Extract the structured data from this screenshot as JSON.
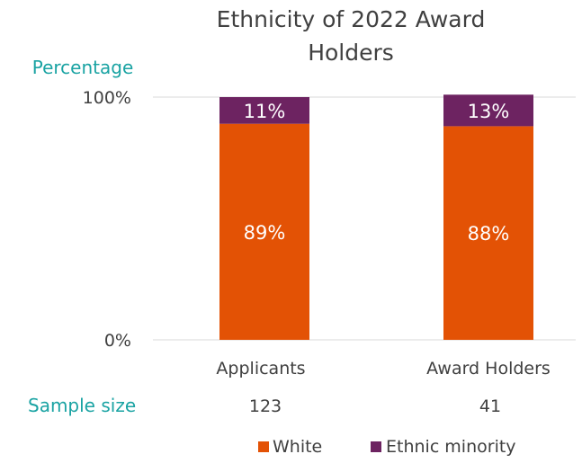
{
  "chart_data": {
    "type": "bar",
    "stacked": true,
    "title_line1": "Ethnicity of 2022 Award",
    "title_line2": "Holders",
    "ylabel": "Percentage",
    "ylim": [
      0,
      100
    ],
    "yticks": [
      "0%",
      "100%"
    ],
    "categories": [
      "Applicants",
      "Award Holders"
    ],
    "series": [
      {
        "name": "White",
        "color": "#e35205",
        "values": [
          89,
          88
        ],
        "labels": [
          "89%",
          "88%"
        ]
      },
      {
        "name": "Ethnic minority",
        "color": "#6d2361",
        "values": [
          11,
          13
        ],
        "labels": [
          "11%",
          "13%"
        ]
      }
    ],
    "sample_size_label": "Sample size",
    "sample_sizes": [
      "123",
      "41"
    ],
    "legend_position": "bottom",
    "grid": false
  }
}
